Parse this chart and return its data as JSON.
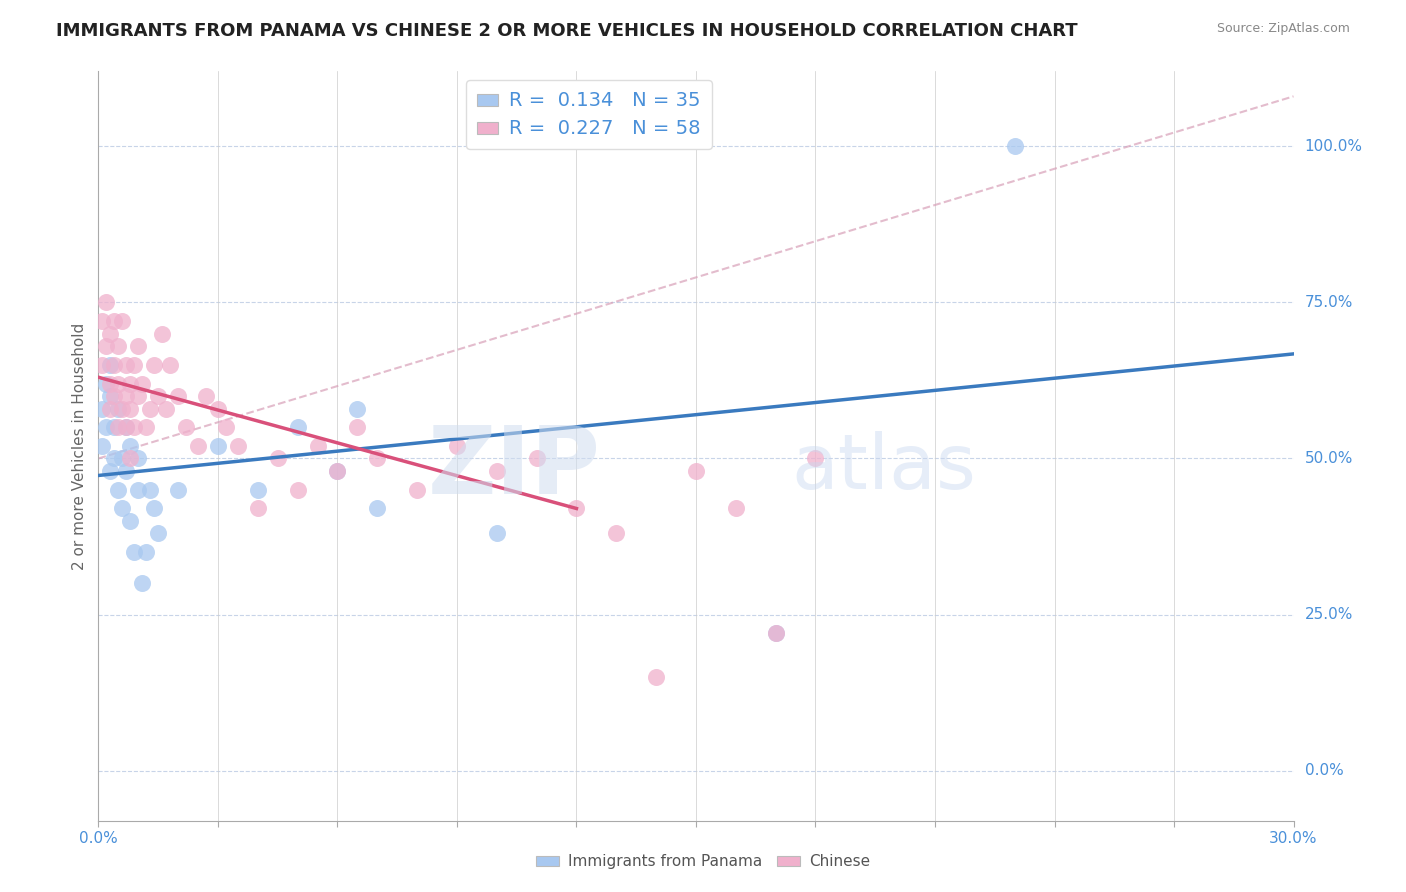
{
  "title": "IMMIGRANTS FROM PANAMA VS CHINESE 2 OR MORE VEHICLES IN HOUSEHOLD CORRELATION CHART",
  "source": "Source: ZipAtlas.com",
  "ylabel": "2 or more Vehicles in Household",
  "legend_labels": [
    "Immigrants from Panama",
    "Chinese"
  ],
  "R_panama": 0.134,
  "N_panama": 35,
  "R_chinese": 0.227,
  "N_chinese": 58,
  "xlim": [
    0.0,
    0.3
  ],
  "ylim": [
    -0.08,
    1.12
  ],
  "yticks": [
    0.0,
    0.25,
    0.5,
    0.75,
    1.0
  ],
  "ytick_labels": [
    "0.0%",
    "25.0%",
    "50.0%",
    "75.0%",
    "100.0%"
  ],
  "xticks": [
    0.0,
    0.03,
    0.06,
    0.09,
    0.12,
    0.15,
    0.18,
    0.21,
    0.24,
    0.27,
    0.3
  ],
  "xtick_labels_show": [
    "0.0%",
    "30.0%"
  ],
  "panama_color": "#a8c8f0",
  "chinese_color": "#f0b0cc",
  "panama_line_color": "#3a7abf",
  "chinese_line_color": "#d9507a",
  "ref_line_color": "#e0b0c0",
  "watermark_zip": "ZIP",
  "watermark_atlas": "atlas",
  "background_color": "#ffffff",
  "grid_color": "#c8d4e8",
  "panama_x": [
    0.001,
    0.001,
    0.002,
    0.002,
    0.003,
    0.003,
    0.003,
    0.004,
    0.004,
    0.005,
    0.005,
    0.006,
    0.006,
    0.007,
    0.007,
    0.008,
    0.008,
    0.009,
    0.01,
    0.01,
    0.011,
    0.012,
    0.013,
    0.014,
    0.015,
    0.02,
    0.03,
    0.04,
    0.05,
    0.06,
    0.065,
    0.07,
    0.1,
    0.17,
    0.23
  ],
  "panama_y": [
    0.58,
    0.52,
    0.62,
    0.55,
    0.65,
    0.6,
    0.48,
    0.55,
    0.5,
    0.45,
    0.58,
    0.42,
    0.5,
    0.55,
    0.48,
    0.4,
    0.52,
    0.35,
    0.5,
    0.45,
    0.3,
    0.35,
    0.45,
    0.42,
    0.38,
    0.45,
    0.52,
    0.45,
    0.55,
    0.48,
    0.58,
    0.42,
    0.38,
    0.22,
    1.0
  ],
  "chinese_x": [
    0.001,
    0.001,
    0.002,
    0.002,
    0.003,
    0.003,
    0.003,
    0.004,
    0.004,
    0.004,
    0.005,
    0.005,
    0.005,
    0.006,
    0.006,
    0.007,
    0.007,
    0.007,
    0.008,
    0.008,
    0.008,
    0.009,
    0.009,
    0.01,
    0.01,
    0.011,
    0.012,
    0.013,
    0.014,
    0.015,
    0.016,
    0.017,
    0.018,
    0.02,
    0.022,
    0.025,
    0.027,
    0.03,
    0.032,
    0.035,
    0.04,
    0.045,
    0.05,
    0.055,
    0.06,
    0.065,
    0.07,
    0.08,
    0.09,
    0.1,
    0.11,
    0.12,
    0.13,
    0.14,
    0.15,
    0.16,
    0.17,
    0.18
  ],
  "chinese_y": [
    0.65,
    0.72,
    0.68,
    0.75,
    0.7,
    0.62,
    0.58,
    0.65,
    0.6,
    0.72,
    0.55,
    0.62,
    0.68,
    0.58,
    0.72,
    0.65,
    0.55,
    0.6,
    0.62,
    0.58,
    0.5,
    0.55,
    0.65,
    0.6,
    0.68,
    0.62,
    0.55,
    0.58,
    0.65,
    0.6,
    0.7,
    0.58,
    0.65,
    0.6,
    0.55,
    0.52,
    0.6,
    0.58,
    0.55,
    0.52,
    0.42,
    0.5,
    0.45,
    0.52,
    0.48,
    0.55,
    0.5,
    0.45,
    0.52,
    0.48,
    0.5,
    0.42,
    0.38,
    0.15,
    0.48,
    0.42,
    0.22,
    0.5
  ]
}
